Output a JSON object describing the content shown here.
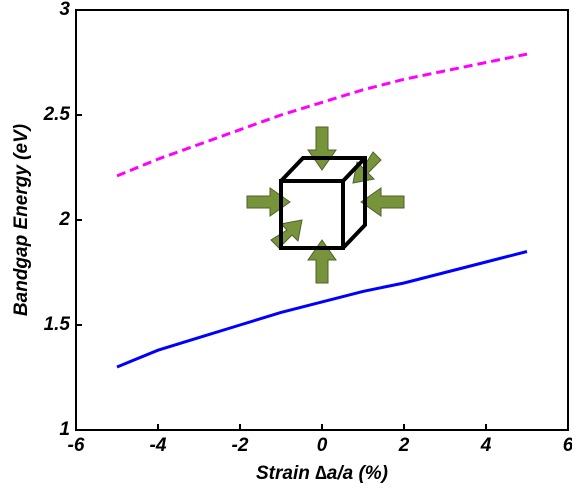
{
  "chart_data": {
    "type": "line",
    "xlabel": "Strain ∆a/a (%)",
    "ylabel": "Bandgap Energy (eV)",
    "x": [
      -5,
      -4,
      -3,
      -2,
      -1,
      0,
      1,
      2,
      3,
      4,
      5
    ],
    "series": [
      {
        "color": "#ff00ff",
        "dash": true,
        "values": [
          2.21,
          2.29,
          2.36,
          2.43,
          2.5,
          2.56,
          2.62,
          2.67,
          2.71,
          2.75,
          2.79
        ]
      },
      {
        "color": "#0000ff",
        "dash": false,
        "values": [
          1.3,
          1.38,
          1.44,
          1.5,
          1.56,
          1.61,
          1.66,
          1.7,
          1.75,
          1.8,
          1.85
        ]
      }
    ],
    "xlim": [
      -6,
      6
    ],
    "xticks": [
      -6,
      -4,
      -2,
      0,
      2,
      4,
      6
    ],
    "ylim": [
      1,
      3
    ],
    "yticks": [
      1,
      1.5,
      2,
      2.5,
      3
    ],
    "grid": false
  }
}
